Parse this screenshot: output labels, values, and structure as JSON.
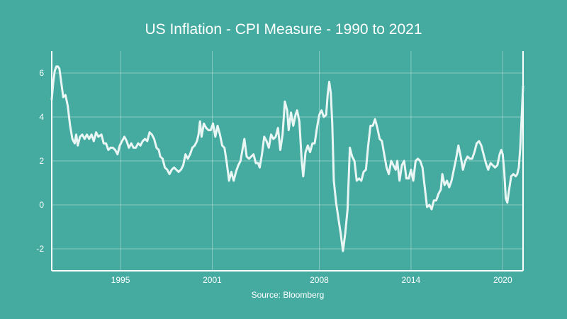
{
  "chart_data": {
    "type": "line",
    "title": "US Inflation - CPI Measure - 1990 to 2021",
    "xlabel": "Source: Bloomberg",
    "ylabel": "",
    "xlim": [
      1990.5,
      2021.33
    ],
    "ylim": [
      -3,
      7
    ],
    "x_ticks": [
      {
        "value": 1995,
        "label": "1995"
      },
      {
        "value": 2001,
        "label": "2001"
      },
      {
        "value": 2008,
        "label": "2008"
      },
      {
        "value": 2014,
        "label": "2014"
      },
      {
        "value": 2020,
        "label": "2020"
      }
    ],
    "y_ticks": [
      {
        "value": 6,
        "label": "6"
      },
      {
        "value": 4,
        "label": "4"
      },
      {
        "value": 2,
        "label": "2"
      },
      {
        "value": 0,
        "label": "0"
      },
      {
        "value": -2,
        "label": "-2"
      }
    ],
    "grid": true,
    "series": [
      {
        "color": "#eaf6f4",
        "points": [
          [
            1990.5,
            4.8
          ],
          [
            1990.6,
            5.6
          ],
          [
            1990.7,
            6.1
          ],
          [
            1990.8,
            6.3
          ],
          [
            1990.9,
            6.3
          ],
          [
            1991.0,
            6.2
          ],
          [
            1991.1,
            5.7
          ],
          [
            1991.25,
            4.9
          ],
          [
            1991.4,
            5.0
          ],
          [
            1991.55,
            4.5
          ],
          [
            1991.7,
            3.6
          ],
          [
            1991.85,
            3.0
          ],
          [
            1992.0,
            2.8
          ],
          [
            1992.1,
            3.2
          ],
          [
            1992.2,
            2.7
          ],
          [
            1992.35,
            3.1
          ],
          [
            1992.5,
            3.2
          ],
          [
            1992.65,
            3.0
          ],
          [
            1992.8,
            3.2
          ],
          [
            1992.95,
            3.0
          ],
          [
            1993.1,
            3.2
          ],
          [
            1993.25,
            2.9
          ],
          [
            1993.4,
            3.3
          ],
          [
            1993.55,
            3.1
          ],
          [
            1993.75,
            3.2
          ],
          [
            1993.9,
            2.8
          ],
          [
            1994.05,
            2.8
          ],
          [
            1994.2,
            2.5
          ],
          [
            1994.35,
            2.6
          ],
          [
            1994.5,
            2.6
          ],
          [
            1994.65,
            2.5
          ],
          [
            1994.8,
            2.3
          ],
          [
            1994.95,
            2.7
          ],
          [
            1995.1,
            2.9
          ],
          [
            1995.25,
            3.1
          ],
          [
            1995.4,
            2.9
          ],
          [
            1995.55,
            2.6
          ],
          [
            1995.7,
            2.8
          ],
          [
            1995.85,
            2.6
          ],
          [
            1996.0,
            2.6
          ],
          [
            1996.15,
            2.8
          ],
          [
            1996.3,
            2.7
          ],
          [
            1996.45,
            2.9
          ],
          [
            1996.6,
            3.0
          ],
          [
            1996.75,
            2.9
          ],
          [
            1996.9,
            3.3
          ],
          [
            1997.05,
            3.2
          ],
          [
            1997.2,
            3.0
          ],
          [
            1997.35,
            2.6
          ],
          [
            1997.5,
            2.5
          ],
          [
            1997.6,
            2.2
          ],
          [
            1997.75,
            2.1
          ],
          [
            1997.9,
            1.7
          ],
          [
            1998.05,
            1.6
          ],
          [
            1998.2,
            1.4
          ],
          [
            1998.35,
            1.6
          ],
          [
            1998.5,
            1.7
          ],
          [
            1998.65,
            1.6
          ],
          [
            1998.8,
            1.5
          ],
          [
            1998.95,
            1.6
          ],
          [
            1999.1,
            1.8
          ],
          [
            1999.25,
            2.3
          ],
          [
            1999.4,
            2.1
          ],
          [
            1999.55,
            2.3
          ],
          [
            1999.7,
            2.6
          ],
          [
            1999.85,
            2.7
          ],
          [
            2000.0,
            2.9
          ],
          [
            2000.1,
            3.2
          ],
          [
            2000.2,
            3.8
          ],
          [
            2000.3,
            3.1
          ],
          [
            2000.45,
            3.7
          ],
          [
            2000.6,
            3.5
          ],
          [
            2000.75,
            3.4
          ],
          [
            2000.9,
            3.4
          ],
          [
            2001.05,
            3.7
          ],
          [
            2001.2,
            3.1
          ],
          [
            2001.35,
            3.6
          ],
          [
            2001.5,
            3.2
          ],
          [
            2001.65,
            2.7
          ],
          [
            2001.8,
            2.6
          ],
          [
            2001.95,
            1.9
          ],
          [
            2002.1,
            1.1
          ],
          [
            2002.25,
            1.5
          ],
          [
            2002.4,
            1.1
          ],
          [
            2002.55,
            1.5
          ],
          [
            2002.7,
            1.8
          ],
          [
            2002.85,
            2.0
          ],
          [
            2003.0,
            2.6
          ],
          [
            2003.1,
            3.0
          ],
          [
            2003.25,
            2.2
          ],
          [
            2003.4,
            2.1
          ],
          [
            2003.55,
            2.2
          ],
          [
            2003.7,
            2.3
          ],
          [
            2003.85,
            1.9
          ],
          [
            2004.0,
            1.9
          ],
          [
            2004.1,
            1.7
          ],
          [
            2004.25,
            2.3
          ],
          [
            2004.4,
            3.1
          ],
          [
            2004.55,
            2.9
          ],
          [
            2004.7,
            2.6
          ],
          [
            2004.85,
            3.2
          ],
          [
            2005.0,
            3.0
          ],
          [
            2005.15,
            3.1
          ],
          [
            2005.3,
            3.5
          ],
          [
            2005.45,
            2.5
          ],
          [
            2005.6,
            3.2
          ],
          [
            2005.75,
            4.7
          ],
          [
            2005.9,
            4.3
          ],
          [
            2006.0,
            3.4
          ],
          [
            2006.15,
            4.2
          ],
          [
            2006.3,
            3.6
          ],
          [
            2006.45,
            4.1
          ],
          [
            2006.55,
            4.3
          ],
          [
            2006.7,
            3.8
          ],
          [
            2006.85,
            2.0
          ],
          [
            2006.95,
            1.3
          ],
          [
            2007.1,
            2.4
          ],
          [
            2007.25,
            2.7
          ],
          [
            2007.4,
            2.4
          ],
          [
            2007.55,
            2.8
          ],
          [
            2007.7,
            2.8
          ],
          [
            2007.85,
            3.5
          ],
          [
            2008.0,
            4.1
          ],
          [
            2008.15,
            4.3
          ],
          [
            2008.3,
            4.0
          ],
          [
            2008.45,
            4.1
          ],
          [
            2008.55,
            5.0
          ],
          [
            2008.65,
            5.6
          ],
          [
            2008.75,
            5.1
          ],
          [
            2008.85,
            3.7
          ],
          [
            2008.95,
            1.1
          ],
          [
            2009.1,
            0.1
          ],
          [
            2009.25,
            -0.6
          ],
          [
            2009.4,
            -1.3
          ],
          [
            2009.55,
            -2.1
          ],
          [
            2009.7,
            -1.3
          ],
          [
            2009.85,
            -0.2
          ],
          [
            2010.0,
            2.6
          ],
          [
            2010.15,
            2.2
          ],
          [
            2010.3,
            2.0
          ],
          [
            2010.45,
            1.1
          ],
          [
            2010.6,
            1.2
          ],
          [
            2010.75,
            1.1
          ],
          [
            2010.9,
            1.5
          ],
          [
            2011.05,
            1.6
          ],
          [
            2011.2,
            2.7
          ],
          [
            2011.35,
            3.6
          ],
          [
            2011.5,
            3.6
          ],
          [
            2011.65,
            3.9
          ],
          [
            2011.8,
            3.5
          ],
          [
            2011.95,
            3.0
          ],
          [
            2012.1,
            2.9
          ],
          [
            2012.25,
            2.3
          ],
          [
            2012.4,
            1.7
          ],
          [
            2012.55,
            1.4
          ],
          [
            2012.7,
            2.0
          ],
          [
            2012.85,
            1.8
          ],
          [
            2013.0,
            1.6
          ],
          [
            2013.1,
            2.0
          ],
          [
            2013.25,
            1.1
          ],
          [
            2013.4,
            1.8
          ],
          [
            2013.55,
            2.0
          ],
          [
            2013.7,
            1.2
          ],
          [
            2013.85,
            1.2
          ],
          [
            2014.0,
            1.6
          ],
          [
            2014.15,
            1.1
          ],
          [
            2014.3,
            2.0
          ],
          [
            2014.45,
            2.1
          ],
          [
            2014.6,
            2.0
          ],
          [
            2014.75,
            1.7
          ],
          [
            2014.9,
            0.8
          ],
          [
            2015.05,
            -0.1
          ],
          [
            2015.2,
            0.0
          ],
          [
            2015.35,
            -0.2
          ],
          [
            2015.5,
            0.2
          ],
          [
            2015.65,
            0.2
          ],
          [
            2015.8,
            0.5
          ],
          [
            2015.95,
            0.7
          ],
          [
            2016.05,
            1.4
          ],
          [
            2016.2,
            0.9
          ],
          [
            2016.35,
            1.1
          ],
          [
            2016.5,
            0.8
          ],
          [
            2016.65,
            1.1
          ],
          [
            2016.8,
            1.6
          ],
          [
            2016.95,
            2.1
          ],
          [
            2017.1,
            2.7
          ],
          [
            2017.25,
            2.2
          ],
          [
            2017.4,
            1.6
          ],
          [
            2017.55,
            2.0
          ],
          [
            2017.7,
            2.2
          ],
          [
            2017.85,
            2.1
          ],
          [
            2018.0,
            2.1
          ],
          [
            2018.15,
            2.4
          ],
          [
            2018.3,
            2.8
          ],
          [
            2018.45,
            2.9
          ],
          [
            2018.6,
            2.7
          ],
          [
            2018.75,
            2.3
          ],
          [
            2018.9,
            1.9
          ],
          [
            2019.05,
            1.6
          ],
          [
            2019.2,
            1.9
          ],
          [
            2019.35,
            1.8
          ],
          [
            2019.5,
            1.7
          ],
          [
            2019.65,
            1.8
          ],
          [
            2019.8,
            2.3
          ],
          [
            2019.9,
            2.5
          ],
          [
            2020.0,
            2.3
          ],
          [
            2020.1,
            1.5
          ],
          [
            2020.2,
            0.3
          ],
          [
            2020.3,
            0.1
          ],
          [
            2020.4,
            0.6
          ],
          [
            2020.55,
            1.3
          ],
          [
            2020.7,
            1.4
          ],
          [
            2020.85,
            1.3
          ],
          [
            2020.95,
            1.4
          ],
          [
            2021.05,
            1.7
          ],
          [
            2021.15,
            2.6
          ],
          [
            2021.25,
            4.2
          ],
          [
            2021.33,
            5.4
          ]
        ]
      }
    ]
  }
}
